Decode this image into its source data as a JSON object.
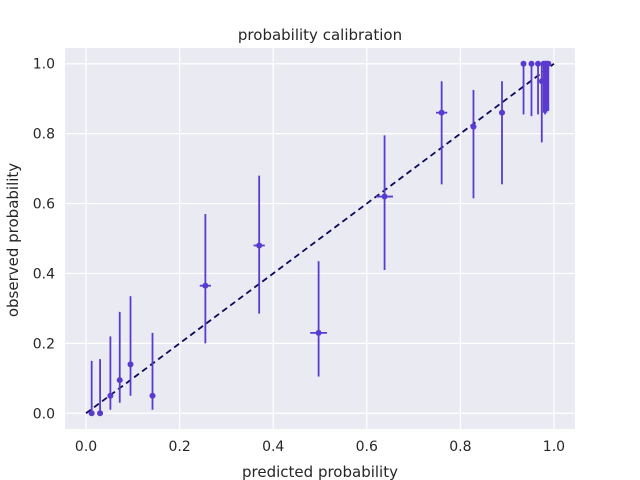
{
  "chart_data": {
    "type": "scatter",
    "title": "probability calibration",
    "xlabel": "predicted probability",
    "ylabel": "observed probability",
    "xlim": [
      -0.045,
      1.045
    ],
    "ylim": [
      -0.045,
      1.045
    ],
    "xticks": [
      0.0,
      0.2,
      0.4,
      0.6,
      0.8,
      1.0
    ],
    "xtick_labels": [
      "0.0",
      "0.2",
      "0.4",
      "0.6",
      "0.8",
      "1.0"
    ],
    "yticks": [
      0.0,
      0.2,
      0.4,
      0.6,
      0.8,
      1.0
    ],
    "ytick_labels": [
      "0.0",
      "0.2",
      "0.4",
      "0.6",
      "0.8",
      "1.0"
    ],
    "grid": true,
    "colors": {
      "points": "#5a3bcf",
      "reference": "#0a0a5a",
      "background": "#eaeaf2",
      "grid": "#ffffff"
    },
    "reference_line": {
      "style": "dashed",
      "x": [
        0.0,
        1.0
      ],
      "y": [
        0.0,
        1.0
      ]
    },
    "points": [
      {
        "x": 0.012,
        "y": 0.0,
        "ylow": 0.0,
        "yhigh": 0.15,
        "xerr": 0.0
      },
      {
        "x": 0.03,
        "y": 0.0,
        "ylow": 0.0,
        "yhigh": 0.155,
        "xerr": 0.0
      },
      {
        "x": 0.052,
        "y": 0.05,
        "ylow": 0.01,
        "yhigh": 0.22,
        "xerr": 0.0
      },
      {
        "x": 0.072,
        "y": 0.095,
        "ylow": 0.03,
        "yhigh": 0.29,
        "xerr": 0.0
      },
      {
        "x": 0.095,
        "y": 0.14,
        "ylow": 0.05,
        "yhigh": 0.335,
        "xerr": 0.0
      },
      {
        "x": 0.142,
        "y": 0.05,
        "ylow": 0.01,
        "yhigh": 0.23,
        "xerr": 0.006
      },
      {
        "x": 0.255,
        "y": 0.365,
        "ylow": 0.2,
        "yhigh": 0.57,
        "xerr": 0.012
      },
      {
        "x": 0.37,
        "y": 0.48,
        "ylow": 0.285,
        "yhigh": 0.68,
        "xerr": 0.012
      },
      {
        "x": 0.497,
        "y": 0.23,
        "ylow": 0.105,
        "yhigh": 0.435,
        "xerr": 0.018
      },
      {
        "x": 0.638,
        "y": 0.62,
        "ylow": 0.41,
        "yhigh": 0.795,
        "xerr": 0.018
      },
      {
        "x": 0.76,
        "y": 0.86,
        "ylow": 0.655,
        "yhigh": 0.95,
        "xerr": 0.012
      },
      {
        "x": 0.828,
        "y": 0.82,
        "ylow": 0.615,
        "yhigh": 0.925,
        "xerr": 0.006
      },
      {
        "x": 0.889,
        "y": 0.86,
        "ylow": 0.655,
        "yhigh": 0.95,
        "xerr": 0.006
      },
      {
        "x": 0.935,
        "y": 1.0,
        "ylow": 0.855,
        "yhigh": 1.0,
        "xerr": 0.0
      },
      {
        "x": 0.952,
        "y": 1.0,
        "ylow": 0.85,
        "yhigh": 1.0,
        "xerr": 0.0
      },
      {
        "x": 0.966,
        "y": 1.0,
        "ylow": 0.855,
        "yhigh": 1.0,
        "xerr": 0.0
      },
      {
        "x": 0.974,
        "y": 0.95,
        "ylow": 0.775,
        "yhigh": 1.0,
        "xerr": 0.0
      },
      {
        "x": 0.978,
        "y": 1.0,
        "ylow": 0.86,
        "yhigh": 1.0,
        "xerr": 0.0
      },
      {
        "x": 0.981,
        "y": 1.0,
        "ylow": 0.855,
        "yhigh": 1.0,
        "xerr": 0.0
      },
      {
        "x": 0.984,
        "y": 1.0,
        "ylow": 0.86,
        "yhigh": 1.0,
        "xerr": 0.0
      },
      {
        "x": 0.986,
        "y": 1.0,
        "ylow": 0.865,
        "yhigh": 1.0,
        "xerr": 0.0
      },
      {
        "x": 0.988,
        "y": 1.0,
        "ylow": 0.865,
        "yhigh": 1.0,
        "xerr": 0.0
      }
    ]
  }
}
